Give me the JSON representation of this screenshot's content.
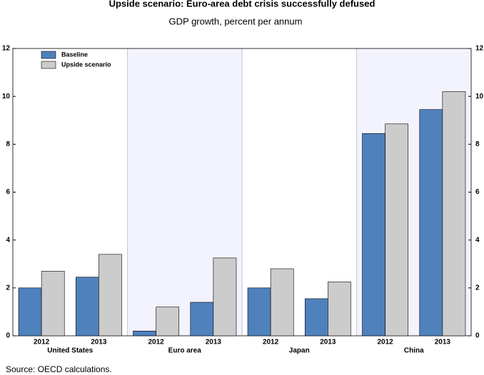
{
  "chart_data": {
    "type": "bar",
    "title": "Upside scenario: Euro-area debt crisis successfully defused",
    "subtitle": "GDP growth, percent per annum",
    "categories": [
      "2012",
      "2013",
      "2012",
      "2013",
      "2012",
      "2013",
      "2012",
      "2013"
    ],
    "groups": [
      "United States",
      "Euro area",
      "Japan",
      "China"
    ],
    "series": [
      {
        "name": "Baseline",
        "color": "#4f81bd",
        "values": [
          2.0,
          2.45,
          0.2,
          1.4,
          2.0,
          1.55,
          8.45,
          9.45
        ]
      },
      {
        "name": "Upside scenario",
        "color": "#cccccc",
        "values": [
          2.7,
          3.4,
          1.2,
          3.25,
          2.8,
          2.25,
          8.85,
          10.2
        ]
      }
    ],
    "ylim": [
      0,
      12
    ],
    "yticks": [
      0,
      2,
      4,
      6,
      8,
      10,
      12
    ],
    "y2lim": [
      0,
      12
    ],
    "y2ticks": [
      0,
      2,
      4,
      6,
      8,
      10,
      12
    ],
    "legend": "top-left",
    "source": "Source: OECD calculations."
  }
}
